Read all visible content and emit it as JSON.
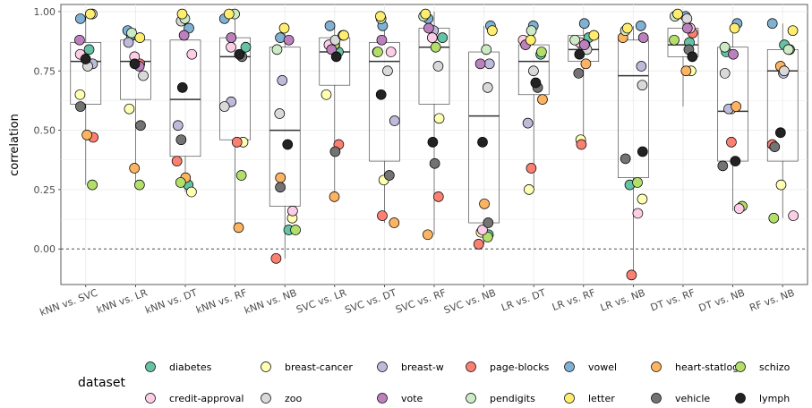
{
  "chart_data": {
    "type": "box-jitter",
    "ylabel": "correlation",
    "xlabel": "",
    "ylim": [
      -0.15,
      1.03
    ],
    "yticks": [
      0.0,
      0.25,
      0.5,
      0.75,
      1.0
    ],
    "ytick_labels": [
      "0.00",
      "0.25",
      "0.50",
      "0.75",
      "1.00"
    ],
    "reference_line": 0.0,
    "categories": [
      "kNN vs. SVC",
      "kNN vs. LR",
      "kNN vs. DT",
      "kNN vs. RF",
      "kNN vs. NB",
      "SVC vs. LR",
      "SVC vs. DT",
      "SVC vs. RF",
      "SVC vs. NB",
      "LR vs. DT",
      "LR vs. RF",
      "LR vs. NB",
      "DT vs. RF",
      "DT vs. NB",
      "RF vs. NB"
    ],
    "legend": {
      "title": "dataset",
      "position": "bottom",
      "entries": [
        {
          "name": "diabetes",
          "color": "#66C2A5"
        },
        {
          "name": "breast-cancer",
          "color": "#FFFFB3"
        },
        {
          "name": "breast-w",
          "color": "#BEBADA"
        },
        {
          "name": "page-blocks",
          "color": "#FB8072"
        },
        {
          "name": "vowel",
          "color": "#80B1D3"
        },
        {
          "name": "heart-statlog",
          "color": "#FDB462"
        },
        {
          "name": "schizo",
          "color": "#B3DE69"
        },
        {
          "name": "credit-approval",
          "color": "#FCCDE5"
        },
        {
          "name": "zoo",
          "color": "#D9D9D9"
        },
        {
          "name": "vote",
          "color": "#BC80BD"
        },
        {
          "name": "pendigits",
          "color": "#CCEBC5"
        },
        {
          "name": "letter",
          "color": "#FFED6F"
        },
        {
          "name": "vehicle",
          "color": "#737373"
        },
        {
          "name": "lymph",
          "color": "#222222"
        }
      ]
    },
    "boxes": [
      {
        "q1": 0.61,
        "median": 0.79,
        "q3": 0.87,
        "low": 0.27,
        "high": 1.0
      },
      {
        "q1": 0.63,
        "median": 0.79,
        "q3": 0.88,
        "low": 0.27,
        "high": 0.93
      },
      {
        "q1": 0.39,
        "median": 0.63,
        "q3": 0.88,
        "low": 0.24,
        "high": 0.99
      },
      {
        "q1": 0.46,
        "median": 0.81,
        "q3": 0.89,
        "low": 0.09,
        "high": 1.0
      },
      {
        "q1": 0.18,
        "median": 0.5,
        "q3": 0.85,
        "low": -0.04,
        "high": 0.93
      },
      {
        "q1": 0.69,
        "median": 0.83,
        "q3": 0.89,
        "low": 0.22,
        "high": 0.95
      },
      {
        "q1": 0.37,
        "median": 0.79,
        "q3": 0.87,
        "low": 0.11,
        "high": 0.98
      },
      {
        "q1": 0.61,
        "median": 0.85,
        "q3": 0.93,
        "low": 0.06,
        "high": 1.0
      },
      {
        "q1": 0.11,
        "median": 0.56,
        "q3": 0.83,
        "low": 0.02,
        "high": 0.94
      },
      {
        "q1": 0.65,
        "median": 0.79,
        "q3": 0.86,
        "low": 0.25,
        "high": 0.94
      },
      {
        "q1": 0.79,
        "median": 0.84,
        "q3": 0.9,
        "low": 0.44,
        "high": 0.95
      },
      {
        "q1": 0.3,
        "median": 0.73,
        "q3": 0.88,
        "low": -0.11,
        "high": 0.94
      },
      {
        "q1": 0.81,
        "median": 0.86,
        "q3": 0.93,
        "low": 0.6,
        "high": 0.99
      },
      {
        "q1": 0.37,
        "median": 0.58,
        "q3": 0.85,
        "low": 0.16,
        "high": 0.95
      },
      {
        "q1": 0.37,
        "median": 0.75,
        "q3": 0.84,
        "low": 0.13,
        "high": 0.95
      }
    ],
    "points": [
      {
        "series": "diabetes",
        "y": [
          0.84,
          0.9,
          0.27,
          0.85,
          0.08,
          0.83,
          0.83,
          0.89,
          0.06,
          0.82,
          0.89,
          0.27,
          0.87,
          0.83,
          0.86
        ]
      },
      {
        "series": "breast-cancer",
        "y": [
          0.65,
          0.59,
          0.24,
          0.45,
          0.13,
          0.65,
          0.29,
          0.55,
          0.07,
          0.25,
          0.46,
          0.21,
          0.75,
          0.59,
          0.27
        ]
      },
      {
        "series": "breast-w",
        "y": [
          0.78,
          0.87,
          0.52,
          0.62,
          0.71,
          0.86,
          0.54,
          0.92,
          0.78,
          0.53,
          0.86,
          0.77,
          0.93,
          0.59,
          0.74
        ]
      },
      {
        "series": "page-blocks",
        "y": [
          0.47,
          0.78,
          0.37,
          0.45,
          -0.04,
          0.44,
          0.14,
          0.22,
          0.02,
          0.34,
          0.44,
          -0.11,
          0.91,
          0.45,
          0.44
        ]
      },
      {
        "series": "vowel",
        "y": [
          0.97,
          0.92,
          0.93,
          0.97,
          0.89,
          0.94,
          0.94,
          0.97,
          0.94,
          0.94,
          0.95,
          0.94,
          0.98,
          0.95,
          0.95
        ]
      },
      {
        "series": "heart-statlog",
        "y": [
          0.48,
          0.34,
          0.3,
          0.09,
          0.3,
          0.22,
          0.11,
          0.06,
          0.19,
          0.63,
          0.78,
          0.89,
          0.75,
          0.6,
          0.77
        ]
      },
      {
        "series": "schizo",
        "y": [
          0.27,
          0.27,
          0.28,
          0.31,
          0.08,
          0.86,
          0.83,
          0.85,
          0.05,
          0.83,
          0.86,
          0.28,
          0.88,
          0.18,
          0.13
        ]
      },
      {
        "series": "credit-approval",
        "y": [
          0.82,
          0.81,
          0.82,
          0.85,
          0.16,
          0.86,
          0.83,
          0.89,
          0.08,
          0.88,
          0.87,
          0.15,
          0.93,
          0.17,
          0.14
        ]
      },
      {
        "series": "zoo",
        "y": [
          0.77,
          0.73,
          0.96,
          0.6,
          0.57,
          0.88,
          0.75,
          0.77,
          0.68,
          0.75,
          0.84,
          0.69,
          0.97,
          0.74,
          0.75
        ]
      },
      {
        "series": "vote",
        "y": [
          0.88,
          0.77,
          0.9,
          0.89,
          0.88,
          0.84,
          0.88,
          0.93,
          0.78,
          0.86,
          0.86,
          0.89,
          0.93,
          0.82,
          0.84
        ]
      },
      {
        "series": "pendigits",
        "y": [
          0.99,
          0.91,
          0.97,
          0.99,
          0.84,
          0.9,
          0.97,
          0.98,
          0.84,
          0.92,
          0.88,
          0.92,
          0.98,
          0.85,
          0.84
        ]
      },
      {
        "series": "letter",
        "y": [
          0.99,
          0.89,
          0.99,
          0.99,
          0.93,
          0.9,
          0.98,
          0.99,
          0.92,
          0.88,
          0.9,
          0.93,
          0.99,
          0.93,
          0.92
        ]
      },
      {
        "series": "vehicle",
        "y": [
          0.6,
          0.52,
          0.46,
          0.81,
          0.26,
          0.41,
          0.31,
          0.36,
          0.11,
          0.68,
          0.74,
          0.38,
          0.84,
          0.35,
          0.43
        ]
      },
      {
        "series": "lymph",
        "y": [
          0.8,
          0.78,
          0.68,
          0.82,
          0.44,
          0.81,
          0.65,
          0.45,
          0.45,
          0.7,
          0.82,
          0.41,
          0.81,
          0.37,
          0.49
        ]
      }
    ]
  }
}
